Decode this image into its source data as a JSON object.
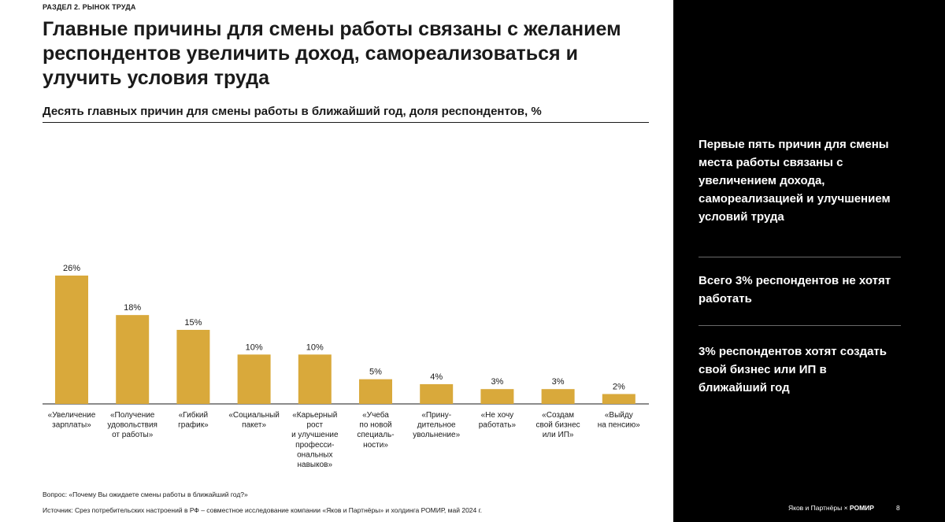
{
  "section": "РАЗДЕЛ 2. РЫНОК ТРУДА",
  "title": "Главные причины для смены работы связаны с желанием респондентов увеличить доход, самореализоваться и улучить условия труда",
  "chart_data": {
    "type": "bar",
    "title": "Десять главных причин для смены работы в ближайший год, доля респондентов, %",
    "categories": [
      [
        "«Увеличение",
        "зарплаты»"
      ],
      [
        "«Получение",
        "удовольствия",
        "от работы»"
      ],
      [
        "«Гибкий",
        "график»"
      ],
      [
        "«Социальный",
        "пакет»"
      ],
      [
        "«Карьерный",
        "рост",
        "и улучшение",
        "професси-",
        "ональных",
        "навыков»"
      ],
      [
        "«Учеба",
        "по новой",
        "специаль-",
        "ности»"
      ],
      [
        "«Прину-",
        "дительное",
        "увольнение»"
      ],
      [
        "«Не хочу",
        "работать»"
      ],
      [
        "«Создам",
        "свой бизнес",
        "или ИП»"
      ],
      [
        "«Выйду",
        "на пенсию»"
      ]
    ],
    "values": [
      26,
      18,
      15,
      10,
      10,
      5,
      4,
      3,
      3,
      2
    ],
    "value_labels": [
      "26%",
      "18%",
      "15%",
      "10%",
      "10%",
      "5%",
      "4%",
      "3%",
      "3%",
      "2%"
    ],
    "ylim": [
      0,
      26
    ],
    "bar_color": "#D9A93B",
    "grid": false,
    "legend": "none"
  },
  "footnotes": {
    "question": "Вопрос: «Почему Вы ожидаете смены работы в ближайший год?»",
    "source": "Источник: Срез потребительских настроений в РФ – совместное исследование компании «Яков и Партнёры» и холдинга РОМИР, май 2024 г."
  },
  "insights": {
    "first": "Первые пять причин для смены места работы связаны с увеличением дохода, самореализацией и улучшением условий труда",
    "second_value": "3%",
    "second_pre": "Всего ",
    "second_post": " респондентов не хотят работать",
    "third_value": "3%",
    "third_post": " респондентов хотят создать свой бизнес или ИП в ближайший год"
  },
  "footer": {
    "brand1": "Яков и Партнёры",
    "separator": "×",
    "brand2": "РОМИР",
    "page_number": "8"
  },
  "colors": {
    "bar": "#D9A93B",
    "panel": "#000000",
    "text": "#1a1a1a"
  }
}
